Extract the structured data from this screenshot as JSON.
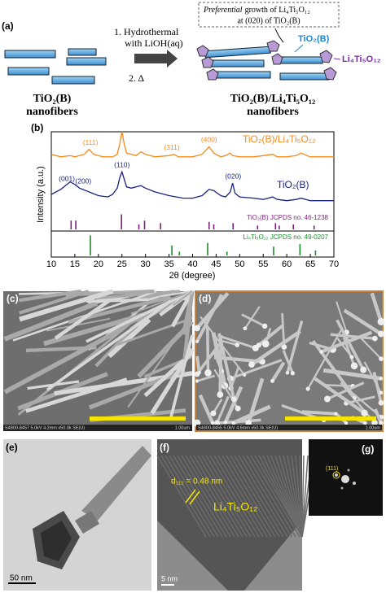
{
  "panel_a": {
    "label": "(a)",
    "callout_italic": "Preferential",
    "callout_rest": "growth of Li₄Ti₅O₁₂",
    "callout_line2": "at (020) of TiO₂(B)",
    "step1": "1.  Hydrothermal",
    "step1b": "with LiOH(aq)",
    "step2": "2.  Δ",
    "rod_label": "TiO₂(B)",
    "cap_label": "Li₄Ti₅O₁₂",
    "left_title": "TiO₂(B)",
    "left_sub": "nanofibers",
    "right_title": "TiO₂(B)/Li₄Ti₅O₁₂",
    "right_sub": "nanofibers"
  },
  "chart_data": {
    "type": "line",
    "label": "(b)",
    "xlabel": "2θ (degree)",
    "ylabel": "Intensity (a.u.)",
    "xlim": [
      10,
      70
    ],
    "xticks": [
      10,
      15,
      20,
      25,
      30,
      35,
      40,
      45,
      50,
      55,
      60,
      65,
      70
    ],
    "ylim": [
      0,
      100
    ],
    "series": [
      {
        "name": "TiO₂(B)/Li₄Ti₅O₁₂",
        "color": "#f28a1c",
        "x": [
          10,
          12,
          14,
          15,
          17,
          18,
          19,
          21,
          23,
          24,
          24.5,
          25,
          25.5,
          26,
          28,
          29,
          30,
          32,
          35,
          36,
          37,
          40,
          42,
          43.5,
          44.5,
          46,
          47,
          48,
          48.5,
          50,
          53,
          55,
          57,
          58,
          60,
          62,
          63,
          65,
          67,
          70
        ],
        "values": [
          82,
          80,
          81,
          80,
          82,
          86,
          82,
          80,
          80,
          82,
          90,
          100,
          90,
          83,
          81,
          84,
          82,
          80,
          81,
          82,
          80,
          80,
          82,
          88,
          83,
          80,
          81,
          83,
          81,
          80,
          80,
          81,
          82,
          80,
          80,
          81,
          83,
          80,
          80,
          80
        ]
      },
      {
        "name": "TiO₂(B)",
        "color": "#1a2380",
        "x": [
          10,
          12,
          13,
          14,
          15,
          16,
          18,
          20,
          22,
          23,
          24,
          24.5,
          25,
          25.5,
          26,
          27,
          28,
          29,
          30,
          32,
          35,
          38,
          40,
          42,
          43.5,
          44.5,
          46,
          47,
          48,
          48.5,
          49,
          50,
          53,
          55,
          57,
          58,
          60,
          62,
          63,
          65,
          67,
          70
        ],
        "values": [
          50,
          54,
          57,
          60,
          58,
          55,
          52,
          49,
          48,
          50,
          55,
          63,
          68,
          62,
          56,
          55,
          56,
          57,
          55,
          52,
          49,
          47,
          47,
          49,
          54,
          53,
          49,
          48,
          52,
          59,
          51,
          48,
          47,
          46,
          48,
          46,
          45,
          46,
          47,
          45,
          45,
          45
        ]
      }
    ],
    "annotations": [
      {
        "text": "(111)",
        "x": 18.3,
        "series": 0
      },
      {
        "text": "(311)",
        "x": 35.6,
        "series": 0
      },
      {
        "text": "(400)",
        "x": 43.5,
        "series": 0
      },
      {
        "text": "(001)",
        "x": 13.3,
        "series": 1
      },
      {
        "text": "(200)",
        "x": 16.8,
        "series": 1
      },
      {
        "text": "(110)",
        "x": 25,
        "series": 1
      },
      {
        "text": "(020)",
        "x": 48.6,
        "series": 1
      }
    ],
    "references": [
      {
        "name": "TiO₂(B) JCPDS no. 46-1238",
        "color": "#7a1f7a",
        "x": [
          14.2,
          15.2,
          24.9,
          28.6,
          29.8,
          33.2,
          43.5,
          44.5,
          48.6,
          53.8,
          57.6,
          58.4,
          61.4,
          65.8
        ],
        "values": [
          7,
          7,
          12,
          4,
          7,
          5,
          6,
          4,
          5,
          3,
          5,
          3,
          4,
          3
        ]
      },
      {
        "name": "Li₄Ti₅O₁₂ JCPDS no. 49-0207",
        "color": "#1a8c2a",
        "x": [
          18.3,
          35.6,
          37.2,
          43.2,
          47.3,
          57.2,
          62.8,
          66.1
        ],
        "values": [
          16,
          8,
          3,
          10,
          3,
          7,
          9,
          4
        ]
      }
    ]
  },
  "panel_c": {
    "label": "(c)",
    "info": "S4800-8457 5.0kV 4.2mm x50.0k SE(U)",
    "scale": "1.00um"
  },
  "panel_d": {
    "label": "(d)",
    "info": "S4800-8455 5.0kV 4.6mm x50.0k SE(U)",
    "scale": "1.00um"
  },
  "panel_e": {
    "label": "(e)",
    "scale": "50 nm"
  },
  "panel_f": {
    "label": "(f)",
    "scale": "5 nm",
    "spacing": "d₁₁₁ = 0.48 nm",
    "phase": "Li₄Ti₅O₁₂"
  },
  "panel_g": {
    "label": "(g)",
    "spot": "(111)"
  }
}
